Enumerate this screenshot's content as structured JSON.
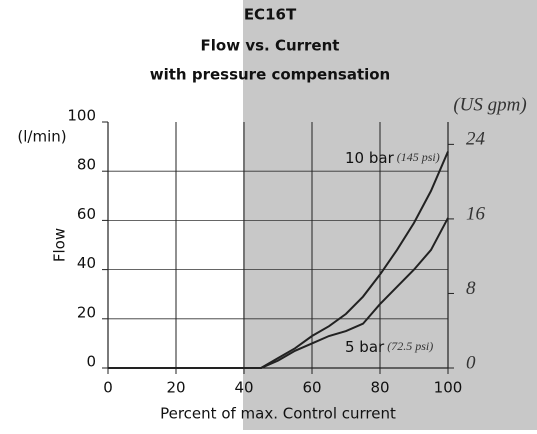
{
  "chart_data": {
    "type": "line",
    "title": [
      "EC16T",
      "Flow vs. Current",
      "with pressure compensation"
    ],
    "y_label": "Flow",
    "y_unit": "(l/min)",
    "y2_unit": "(US gpm)",
    "x_label": "Percent of max. Control current",
    "x": [
      0,
      45,
      50,
      55,
      60,
      65,
      70,
      75,
      80,
      85,
      90,
      95,
      100
    ],
    "series": [
      {
        "name": "10 bar",
        "note": "(145 psi)",
        "color": "#222",
        "values": [
          0,
          0,
          4,
          8,
          13,
          17,
          22,
          29,
          38,
          48,
          59,
          72,
          88
        ]
      },
      {
        "name": "5 bar",
        "note": "(72.5 psi)",
        "color": "#222",
        "values": [
          0,
          0,
          3,
          7,
          10,
          13,
          15,
          18,
          26,
          33,
          40,
          48,
          61
        ]
      }
    ],
    "xlim": [
      0,
      100
    ],
    "xticks": [
      0,
      20,
      40,
      60,
      80,
      100
    ],
    "ylim": [
      0,
      100
    ],
    "yticks": [
      0,
      20,
      40,
      60,
      80,
      100
    ],
    "y2lim": [
      0,
      26.4
    ],
    "y2ticks": [
      0,
      8,
      16,
      24
    ],
    "grid": true
  }
}
